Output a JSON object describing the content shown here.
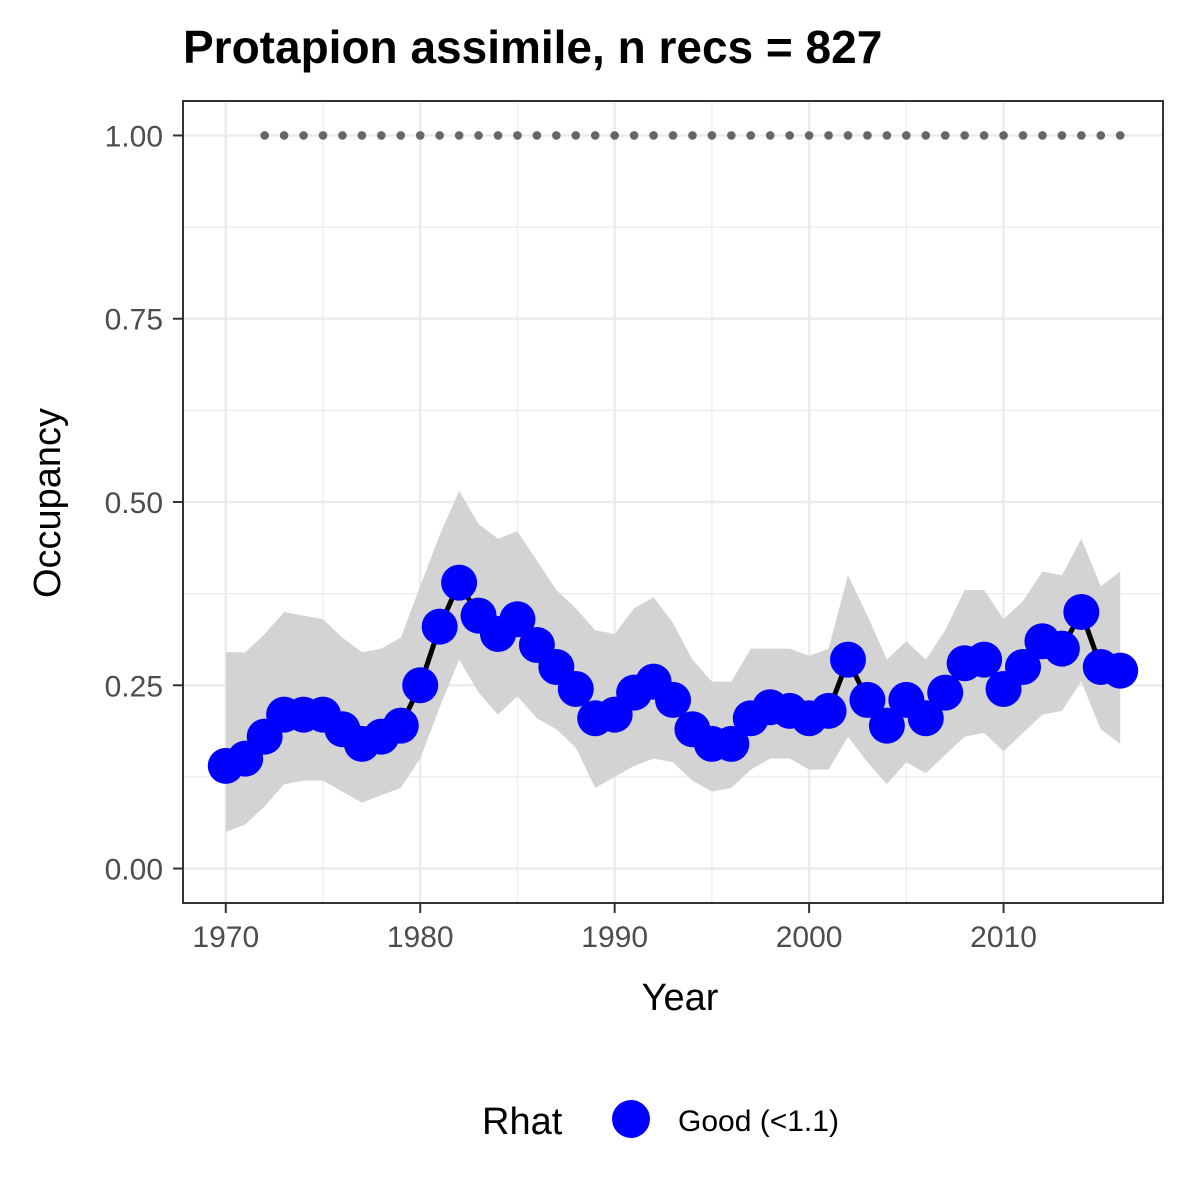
{
  "chart_data": {
    "type": "line",
    "title": "Protapion assimile, n recs = 827",
    "xlabel": "Year",
    "ylabel": "Occupancy",
    "xlim": [
      1967.8,
      2018.2
    ],
    "ylim": [
      -0.047,
      1.047
    ],
    "x_ticks": [
      1970,
      1980,
      1990,
      2000,
      2010
    ],
    "x_tick_labels": [
      "1970",
      "1980",
      "1990",
      "2000",
      "2010"
    ],
    "y_ticks": [
      0,
      0.25,
      0.5,
      0.75,
      1.0
    ],
    "y_tick_labels": [
      "0.00",
      "0.25",
      "0.50",
      "0.75",
      "1.00"
    ],
    "grid": true,
    "legend": {
      "position": "bottom",
      "title": "Rhat",
      "entries": [
        {
          "label": "Good (<1.1)",
          "color": "#0000ff"
        }
      ]
    },
    "colors": {
      "points": "#0000ff",
      "line": "#000000",
      "band": "#d3d3d3",
      "dots": "#666666",
      "grid": "#ebebeb",
      "panel_border": "#333333"
    },
    "series": [
      {
        "x": [
          1970,
          1971,
          1972,
          1973,
          1974,
          1975,
          1976,
          1977,
          1978,
          1979,
          1980,
          1981,
          1982,
          1983,
          1984,
          1985,
          1986,
          1987,
          1988,
          1989,
          1990,
          1991,
          1992,
          1993,
          1994,
          1995,
          1996,
          1997,
          1998,
          1999,
          2000,
          2001,
          2002,
          2003,
          2004,
          2005,
          2006,
          2007,
          2008,
          2009,
          2010,
          2011,
          2012,
          2013,
          2014,
          2015,
          2016
        ],
        "y": [
          0.14,
          0.15,
          0.18,
          0.21,
          0.21,
          0.21,
          0.19,
          0.17,
          0.18,
          0.195,
          0.25,
          0.33,
          0.39,
          0.345,
          0.32,
          0.34,
          0.305,
          0.275,
          0.245,
          0.205,
          0.21,
          0.24,
          0.255,
          0.23,
          0.19,
          0.17,
          0.17,
          0.205,
          0.22,
          0.215,
          0.205,
          0.215,
          0.285,
          0.23,
          0.195,
          0.23,
          0.205,
          0.24,
          0.28,
          0.285,
          0.245,
          0.275,
          0.31,
          0.3,
          0.35,
          0.275,
          0.27
        ],
        "lower": [
          0.05,
          0.06,
          0.085,
          0.115,
          0.12,
          0.12,
          0.105,
          0.09,
          0.1,
          0.11,
          0.15,
          0.22,
          0.285,
          0.24,
          0.21,
          0.235,
          0.205,
          0.19,
          0.165,
          0.11,
          0.125,
          0.14,
          0.15,
          0.145,
          0.12,
          0.105,
          0.11,
          0.135,
          0.15,
          0.15,
          0.135,
          0.135,
          0.18,
          0.145,
          0.115,
          0.145,
          0.13,
          0.155,
          0.18,
          0.185,
          0.16,
          0.185,
          0.21,
          0.215,
          0.255,
          0.19,
          0.17
        ],
        "upper": [
          0.295,
          0.295,
          0.32,
          0.35,
          0.345,
          0.34,
          0.315,
          0.295,
          0.3,
          0.315,
          0.385,
          0.455,
          0.515,
          0.47,
          0.45,
          0.46,
          0.42,
          0.38,
          0.355,
          0.325,
          0.32,
          0.355,
          0.37,
          0.335,
          0.285,
          0.255,
          0.255,
          0.3,
          0.3,
          0.3,
          0.29,
          0.3,
          0.4,
          0.345,
          0.285,
          0.31,
          0.285,
          0.325,
          0.38,
          0.38,
          0.34,
          0.365,
          0.405,
          0.4,
          0.45,
          0.385,
          0.405
        ]
      },
      {
        "x": [
          1972,
          1973,
          1974,
          1975,
          1976,
          1977,
          1978,
          1979,
          1980,
          1981,
          1982,
          1983,
          1984,
          1985,
          1986,
          1987,
          1988,
          1989,
          1990,
          1991,
          1992,
          1993,
          1994,
          1995,
          1996,
          1997,
          1998,
          1999,
          2000,
          2001,
          2002,
          2003,
          2004,
          2005,
          2006,
          2007,
          2008,
          2009,
          2010,
          2011,
          2012,
          2013,
          2014,
          2015,
          2016
        ],
        "y": [
          1,
          1,
          1,
          1,
          1,
          1,
          1,
          1,
          1,
          1,
          1,
          1,
          1,
          1,
          1,
          1,
          1,
          1,
          1,
          1,
          1,
          1,
          1,
          1,
          1,
          1,
          1,
          1,
          1,
          1,
          1,
          1,
          1,
          1,
          1,
          1,
          1,
          1,
          1,
          1,
          1,
          1,
          1,
          1,
          1
        ]
      }
    ]
  }
}
